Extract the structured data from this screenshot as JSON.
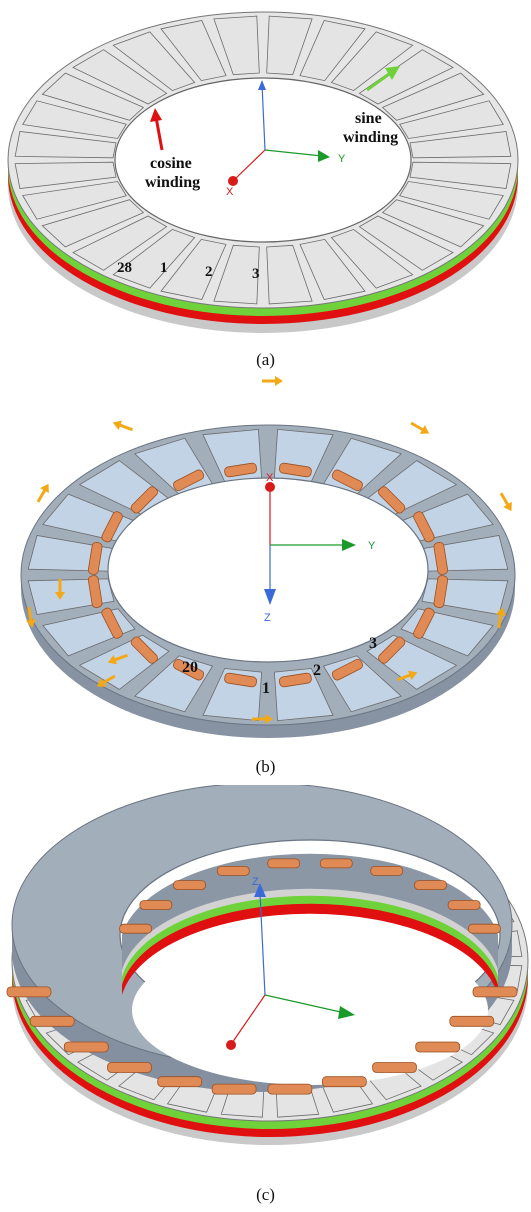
{
  "panel_a": {
    "caption": "(a)",
    "sine_label_line1": "sine",
    "sine_label_line2": "winding",
    "cosine_label_line1": "cosine",
    "cosine_label_line2": "winding",
    "tooth_numbers": [
      "28",
      "1",
      "2",
      "3"
    ],
    "axis_x": "X",
    "axis_y": "Y",
    "tooth_count": 28
  },
  "panel_b": {
    "caption": "(b)",
    "tooth_numbers": [
      "20",
      "1",
      "2",
      "3"
    ],
    "axis_x": "X",
    "axis_y": "Y",
    "axis_z": "Z",
    "tooth_count": 20
  },
  "panel_c": {
    "caption": "(c)",
    "axis_z": "Z"
  },
  "colors": {
    "tooth_a": "#e4e4e4",
    "tooth_b": "#c3d3e6",
    "core": "#9aa5b3",
    "sine_winding": "#6fd23a",
    "cosine_winding": "#e01010",
    "coil_b": "#e08a55",
    "arrow": "#f3a916"
  }
}
